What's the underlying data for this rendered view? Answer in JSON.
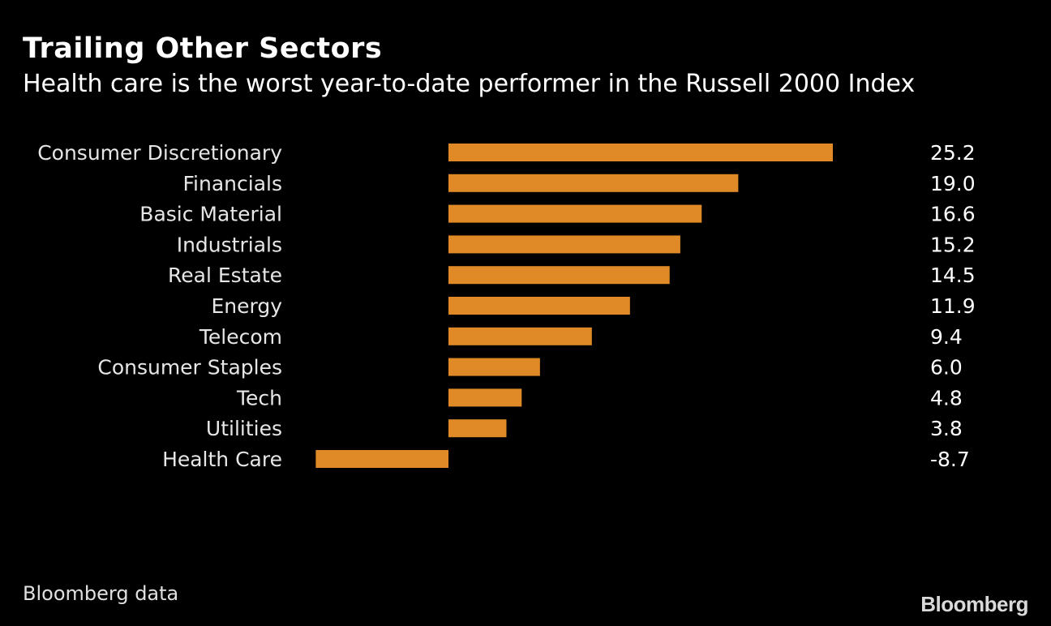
{
  "header": {
    "title": "Trailing Other Sectors",
    "subtitle": "Health care is the worst year-to-date performer in the Russell 2000 Index"
  },
  "footer": {
    "source": "Bloomberg data",
    "brand": "Bloomberg"
  },
  "colors": {
    "background": "#000000",
    "bar": "#e08a27",
    "text": "#ffffff",
    "label": "#e6e6e6"
  },
  "chart_data": {
    "type": "bar",
    "orientation": "horizontal",
    "title": "Trailing Other Sectors",
    "subtitle": "Health care is the worst year-to-date performer in the Russell 2000 Index",
    "categories": [
      "Consumer Discretionary",
      "Financials",
      "Basic Material",
      "Industrials",
      "Real Estate",
      "Energy",
      "Telecom",
      "Consumer Staples",
      "Tech",
      "Utilities",
      "Health Care"
    ],
    "values": [
      25.2,
      19.0,
      16.6,
      15.2,
      14.5,
      11.9,
      9.4,
      6.0,
      4.8,
      3.8,
      -8.7
    ],
    "value_labels": [
      "25.2",
      "19.0",
      "16.6",
      "15.2",
      "14.5",
      "11.9",
      "9.4",
      "6.0",
      "4.8",
      "3.8",
      "-8.7"
    ],
    "xlim": [
      -8.7,
      25.2
    ],
    "grid": false,
    "legend": "none",
    "source": "Bloomberg data"
  }
}
